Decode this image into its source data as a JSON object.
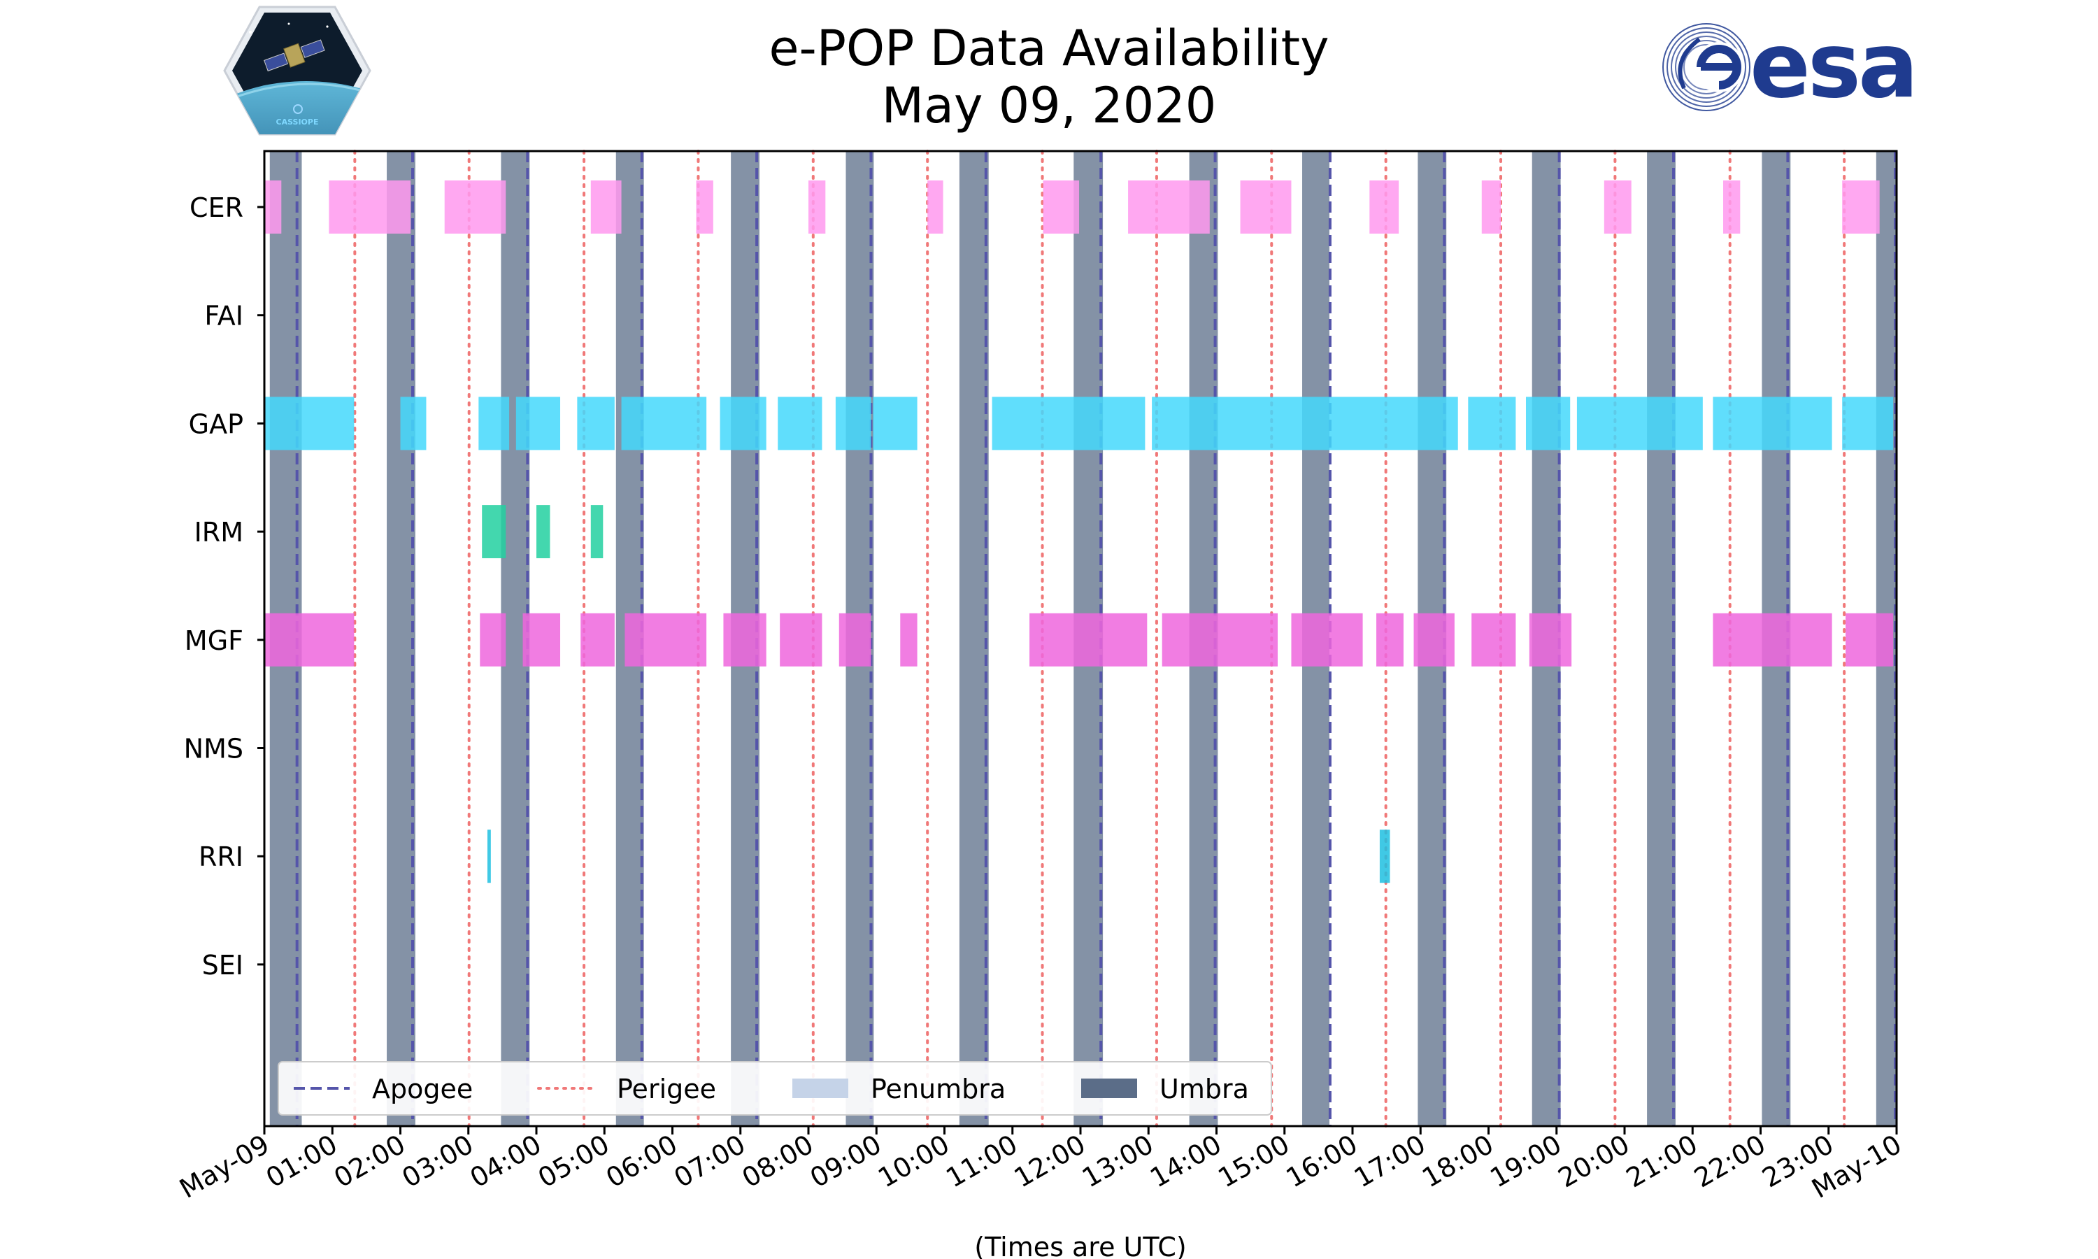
{
  "header": {
    "title_line1": "e-POP Data Availability",
    "title_line2": "May 09, 2020",
    "esa_logo_text": "esa",
    "mission_logo_text": "CASSIOPE"
  },
  "chart_data": {
    "type": "timeline",
    "title": "e-POP Data Availability May 09, 2020",
    "xlabel": "(Times are UTC)",
    "x_range_hours": [
      0,
      24
    ],
    "x_tick_labels": [
      "May-09",
      "01:00",
      "02:00",
      "03:00",
      "04:00",
      "05:00",
      "06:00",
      "07:00",
      "08:00",
      "09:00",
      "10:00",
      "11:00",
      "12:00",
      "13:00",
      "14:00",
      "15:00",
      "16:00",
      "17:00",
      "18:00",
      "19:00",
      "20:00",
      "21:00",
      "22:00",
      "23:00",
      "May-10"
    ],
    "instruments": [
      "CER",
      "FAI",
      "GAP",
      "IRM",
      "MGF",
      "NMS",
      "RRI",
      "SEI"
    ],
    "colors": {
      "CER": "#ff99ee",
      "GAP": "#44d8fb",
      "IRM": "#22d0a0",
      "MGF": "#ee66dd",
      "RRI": "#1fbfe0",
      "umbra": "#5b6d88",
      "penumbra": "#c5d3e8",
      "apogee": "#5555aa",
      "perigee": "#f07878"
    },
    "umbra_intervals": [
      [
        0.08,
        0.55
      ],
      [
        1.8,
        2.22
      ],
      [
        3.48,
        3.9
      ],
      [
        5.17,
        5.58
      ],
      [
        6.86,
        7.28
      ],
      [
        8.55,
        8.96
      ],
      [
        10.22,
        10.65
      ],
      [
        11.9,
        12.33
      ],
      [
        13.6,
        14.02
      ],
      [
        15.26,
        15.66
      ],
      [
        16.96,
        17.38
      ],
      [
        18.64,
        19.06
      ],
      [
        20.33,
        20.75
      ],
      [
        22.02,
        22.44
      ],
      [
        23.7,
        24.0
      ]
    ],
    "apogee_hours": [
      0.48,
      2.18,
      3.87,
      5.55,
      7.24,
      8.92,
      10.61,
      12.3,
      13.98,
      15.67,
      17.35,
      19.04,
      20.72,
      22.4,
      23.98
    ],
    "perigee_hours": [
      1.33,
      3.01,
      4.7,
      6.38,
      8.07,
      9.75,
      11.44,
      13.12,
      14.81,
      16.49,
      18.18,
      19.86,
      21.55,
      23.23
    ],
    "bars": {
      "CER": [
        [
          0.0,
          0.25
        ],
        [
          0.95,
          2.15
        ],
        [
          2.65,
          3.55
        ],
        [
          4.8,
          5.25
        ],
        [
          6.35,
          6.6
        ],
        [
          8.0,
          8.25
        ],
        [
          9.75,
          9.98
        ],
        [
          11.45,
          11.98
        ],
        [
          12.7,
          13.9
        ],
        [
          14.35,
          15.1
        ],
        [
          16.25,
          16.68
        ],
        [
          17.9,
          18.18
        ],
        [
          19.7,
          20.1
        ],
        [
          21.45,
          21.7
        ],
        [
          23.2,
          23.75
        ]
      ],
      "GAP": [
        [
          0.0,
          1.32
        ],
        [
          2.0,
          2.38
        ],
        [
          3.15,
          3.6
        ],
        [
          3.7,
          4.35
        ],
        [
          4.6,
          5.15
        ],
        [
          5.25,
          6.5
        ],
        [
          6.7,
          7.38
        ],
        [
          7.55,
          8.2
        ],
        [
          8.4,
          8.92
        ],
        [
          8.95,
          9.6
        ],
        [
          10.7,
          12.95
        ],
        [
          13.05,
          17.55
        ],
        [
          17.7,
          18.4
        ],
        [
          18.55,
          19.2
        ],
        [
          19.3,
          21.15
        ],
        [
          21.3,
          23.05
        ],
        [
          23.2,
          23.95
        ]
      ],
      "IRM": [
        [
          3.2,
          3.55
        ],
        [
          4.0,
          4.2
        ],
        [
          4.8,
          4.98
        ]
      ],
      "MGF": [
        [
          0.0,
          1.32
        ],
        [
          3.17,
          3.55
        ],
        [
          3.8,
          4.35
        ],
        [
          4.65,
          5.15
        ],
        [
          5.3,
          6.5
        ],
        [
          6.75,
          7.38
        ],
        [
          7.58,
          8.2
        ],
        [
          8.45,
          8.92
        ],
        [
          9.35,
          9.6
        ],
        [
          11.25,
          12.98
        ],
        [
          13.2,
          14.9
        ],
        [
          15.1,
          16.15
        ],
        [
          16.35,
          16.75
        ],
        [
          16.9,
          17.5
        ],
        [
          17.75,
          18.4
        ],
        [
          18.6,
          19.22
        ],
        [
          21.3,
          23.05
        ],
        [
          23.25,
          23.95
        ]
      ],
      "NMS": [],
      "RRI": [
        [
          3.28,
          3.33
        ],
        [
          16.4,
          16.55
        ]
      ],
      "FAI": [],
      "SEI": []
    },
    "legend": {
      "position": "bottom-left",
      "entries": [
        {
          "label": "Apogee",
          "style": "dashed"
        },
        {
          "label": "Perigee",
          "style": "dotted"
        },
        {
          "label": "Penumbra",
          "style": "patch"
        },
        {
          "label": "Umbra",
          "style": "patch"
        }
      ]
    }
  }
}
